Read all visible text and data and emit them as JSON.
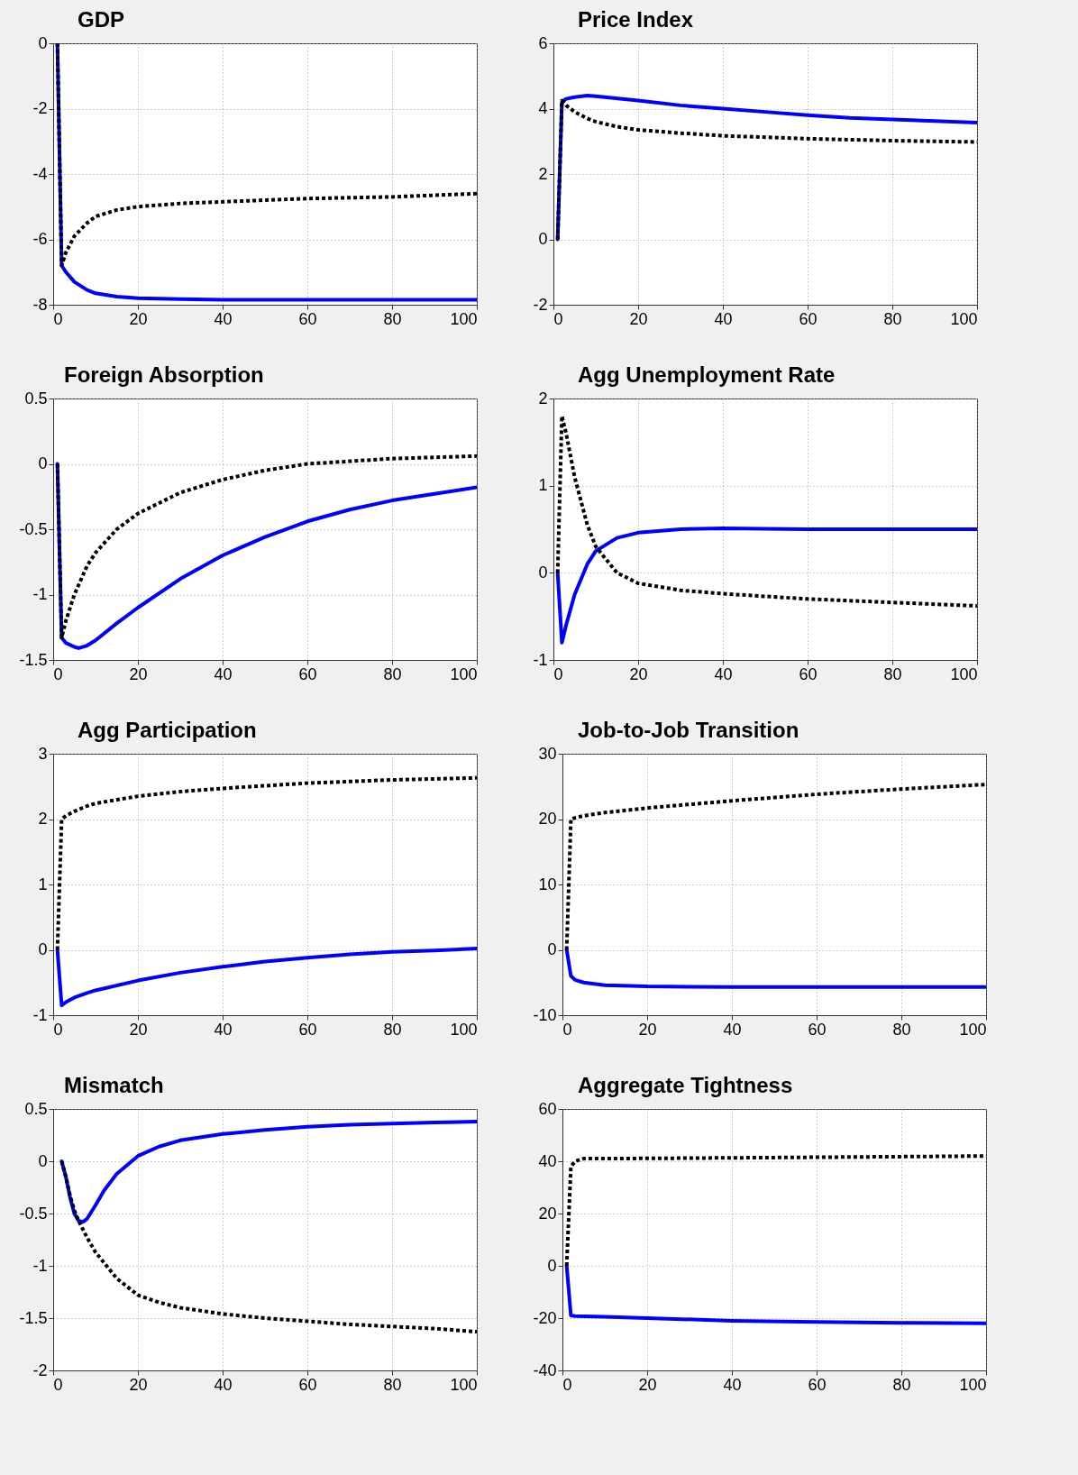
{
  "chart_data": [
    {
      "type": "line",
      "title": "GDP",
      "xlim": [
        0,
        100
      ],
      "xticks": [
        0,
        20,
        40,
        60,
        80,
        100
      ],
      "ylim": [
        -8,
        0
      ],
      "yticks": [
        -8,
        -6,
        -4,
        -2,
        0
      ],
      "grid": true,
      "series": [
        {
          "color": "#0000ff",
          "line_style": "solid",
          "x": [
            1,
            2,
            3,
            5,
            8,
            10,
            15,
            20,
            30,
            40,
            60,
            80,
            100
          ],
          "values": [
            0,
            -6.8,
            -7.0,
            -7.3,
            -7.55,
            -7.65,
            -7.75,
            -7.8,
            -7.83,
            -7.85,
            -7.85,
            -7.85,
            -7.85
          ]
        },
        {
          "color": "#000000",
          "line_style": "dotted",
          "x": [
            1,
            2,
            3,
            5,
            8,
            10,
            15,
            20,
            30,
            40,
            60,
            80,
            100
          ],
          "values": [
            0,
            -6.8,
            -6.4,
            -5.9,
            -5.5,
            -5.3,
            -5.1,
            -5.0,
            -4.9,
            -4.85,
            -4.75,
            -4.7,
            -4.6
          ]
        }
      ]
    },
    {
      "type": "line",
      "title": "Price Index",
      "xlim": [
        0,
        100
      ],
      "xticks": [
        0,
        20,
        40,
        60,
        80,
        100
      ],
      "ylim": [
        -2,
        6
      ],
      "yticks": [
        -2,
        0,
        2,
        4,
        6
      ],
      "grid": true,
      "series": [
        {
          "color": "#0000ff",
          "line_style": "solid",
          "x": [
            1,
            2,
            3,
            5,
            8,
            10,
            20,
            30,
            40,
            50,
            60,
            70,
            80,
            90,
            100
          ],
          "values": [
            0,
            4.2,
            4.3,
            4.35,
            4.4,
            4.38,
            4.25,
            4.1,
            4.0,
            3.9,
            3.8,
            3.72,
            3.67,
            3.62,
            3.57
          ]
        },
        {
          "color": "#000000",
          "line_style": "dotted",
          "x": [
            1,
            2,
            3,
            5,
            8,
            10,
            15,
            20,
            30,
            40,
            60,
            80,
            100
          ],
          "values": [
            0,
            4.25,
            4.1,
            3.9,
            3.7,
            3.6,
            3.45,
            3.35,
            3.25,
            3.17,
            3.08,
            3.02,
            2.98
          ]
        }
      ]
    },
    {
      "type": "line",
      "title": "Foreign Absorption",
      "xlim": [
        0,
        100
      ],
      "xticks": [
        0,
        20,
        40,
        60,
        80,
        100
      ],
      "ylim": [
        -1.5,
        0.5
      ],
      "yticks": [
        -1.5,
        -1,
        -0.5,
        0,
        0.5
      ],
      "grid": true,
      "series": [
        {
          "color": "#0000ff",
          "line_style": "solid",
          "x": [
            1,
            2,
            3,
            5,
            6,
            8,
            10,
            15,
            20,
            30,
            40,
            50,
            60,
            70,
            80,
            90,
            100
          ],
          "values": [
            0,
            -1.33,
            -1.37,
            -1.4,
            -1.41,
            -1.39,
            -1.35,
            -1.22,
            -1.1,
            -0.88,
            -0.7,
            -0.56,
            -0.44,
            -0.35,
            -0.28,
            -0.23,
            -0.18
          ]
        },
        {
          "color": "#000000",
          "line_style": "dotted",
          "x": [
            1,
            2,
            3,
            5,
            8,
            10,
            15,
            20,
            30,
            40,
            50,
            60,
            70,
            80,
            90,
            100
          ],
          "values": [
            0,
            -1.33,
            -1.2,
            -1.0,
            -0.78,
            -0.68,
            -0.5,
            -0.38,
            -0.22,
            -0.12,
            -0.05,
            0,
            0.02,
            0.04,
            0.05,
            0.06
          ]
        }
      ]
    },
    {
      "type": "line",
      "title": "Agg Unemployment Rate",
      "xlim": [
        0,
        100
      ],
      "xticks": [
        0,
        20,
        40,
        60,
        80,
        100
      ],
      "ylim": [
        -1,
        2
      ],
      "yticks": [
        -1,
        0,
        1,
        2
      ],
      "grid": true,
      "series": [
        {
          "color": "#0000ff",
          "line_style": "solid",
          "x": [
            1,
            2,
            3,
            5,
            8,
            10,
            15,
            20,
            30,
            40,
            60,
            80,
            100
          ],
          "values": [
            0,
            -0.8,
            -0.6,
            -0.25,
            0.1,
            0.25,
            0.4,
            0.46,
            0.5,
            0.51,
            0.5,
            0.5,
            0.5
          ]
        },
        {
          "color": "#000000",
          "line_style": "dotted",
          "x": [
            1,
            2,
            3,
            5,
            8,
            10,
            15,
            20,
            30,
            40,
            60,
            80,
            100
          ],
          "values": [
            0,
            1.8,
            1.6,
            1.1,
            0.55,
            0.3,
            0.0,
            -0.12,
            -0.2,
            -0.24,
            -0.3,
            -0.34,
            -0.38
          ]
        }
      ]
    },
    {
      "type": "line",
      "title": "Agg Participation",
      "xlim": [
        0,
        100
      ],
      "xticks": [
        0,
        20,
        40,
        60,
        80,
        100
      ],
      "ylim": [
        -1,
        3
      ],
      "yticks": [
        -1,
        0,
        1,
        2,
        3
      ],
      "grid": true,
      "series": [
        {
          "color": "#0000ff",
          "line_style": "solid",
          "x": [
            1,
            2,
            3,
            5,
            8,
            10,
            20,
            30,
            40,
            50,
            60,
            70,
            80,
            90,
            100
          ],
          "values": [
            0,
            -0.85,
            -0.8,
            -0.73,
            -0.66,
            -0.62,
            -0.47,
            -0.35,
            -0.26,
            -0.18,
            -0.12,
            -0.07,
            -0.03,
            -0.01,
            0.02
          ]
        },
        {
          "color": "#000000",
          "line_style": "dotted",
          "x": [
            1,
            2,
            3,
            5,
            8,
            10,
            20,
            30,
            40,
            60,
            80,
            100
          ],
          "values": [
            0,
            2.0,
            2.05,
            2.12,
            2.2,
            2.24,
            2.35,
            2.42,
            2.47,
            2.55,
            2.6,
            2.63
          ]
        }
      ]
    },
    {
      "type": "line",
      "title": "Job-to-Job Transition",
      "xlim": [
        0,
        100
      ],
      "xticks": [
        0,
        20,
        40,
        60,
        80,
        100
      ],
      "ylim": [
        -10,
        30
      ],
      "yticks": [
        -10,
        0,
        10,
        20,
        30
      ],
      "grid": true,
      "series": [
        {
          "color": "#0000ff",
          "line_style": "solid",
          "x": [
            1,
            2,
            3,
            5,
            10,
            20,
            40,
            100
          ],
          "values": [
            0,
            -4,
            -4.6,
            -5.0,
            -5.4,
            -5.6,
            -5.7,
            -5.7
          ]
        },
        {
          "color": "#000000",
          "line_style": "dotted",
          "x": [
            1,
            2,
            3,
            5,
            10,
            20,
            40,
            60,
            80,
            100
          ],
          "values": [
            0,
            20,
            20.2,
            20.5,
            21,
            21.7,
            22.8,
            23.8,
            24.6,
            25.3
          ]
        }
      ]
    },
    {
      "type": "line",
      "title": "Mismatch",
      "xlim": [
        0,
        100
      ],
      "xticks": [
        0,
        20,
        40,
        60,
        80,
        100
      ],
      "ylim": [
        -2,
        0.5
      ],
      "yticks": [
        -2,
        -1.5,
        -1,
        -0.5,
        0,
        0.5
      ],
      "grid": true,
      "series": [
        {
          "color": "#0000ff",
          "line_style": "solid",
          "x": [
            2,
            3,
            4,
            5,
            6,
            7,
            8,
            10,
            12,
            15,
            20,
            25,
            30,
            40,
            50,
            60,
            70,
            80,
            90,
            100
          ],
          "values": [
            0,
            -0.15,
            -0.35,
            -0.5,
            -0.57,
            -0.58,
            -0.55,
            -0.42,
            -0.28,
            -0.12,
            0.05,
            0.14,
            0.2,
            0.26,
            0.3,
            0.33,
            0.35,
            0.36,
            0.37,
            0.38
          ]
        },
        {
          "color": "#000000",
          "line_style": "dotted",
          "x": [
            2,
            3,
            4,
            5,
            6,
            8,
            10,
            15,
            20,
            25,
            30,
            40,
            50,
            60,
            70,
            80,
            90,
            100
          ],
          "values": [
            0,
            -0.15,
            -0.33,
            -0.47,
            -0.57,
            -0.73,
            -0.87,
            -1.12,
            -1.28,
            -1.35,
            -1.4,
            -1.46,
            -1.5,
            -1.53,
            -1.56,
            -1.58,
            -1.6,
            -1.63
          ]
        }
      ]
    },
    {
      "type": "line",
      "title": "Aggregate Tightness",
      "xlim": [
        0,
        100
      ],
      "xticks": [
        0,
        20,
        40,
        60,
        80,
        100
      ],
      "ylim": [
        -40,
        60
      ],
      "yticks": [
        -40,
        -20,
        0,
        20,
        40,
        60
      ],
      "grid": true,
      "series": [
        {
          "color": "#0000ff",
          "line_style": "solid",
          "x": [
            1,
            2,
            3,
            10,
            20,
            40,
            60,
            80,
            100
          ],
          "values": [
            0,
            -19,
            -19.2,
            -19.5,
            -20,
            -21,
            -21.5,
            -21.8,
            -22
          ]
        },
        {
          "color": "#000000",
          "line_style": "dotted",
          "x": [
            1,
            2,
            3,
            5,
            10,
            40,
            100
          ],
          "values": [
            0,
            38,
            40,
            41,
            41,
            41.3,
            42
          ]
        }
      ]
    }
  ]
}
